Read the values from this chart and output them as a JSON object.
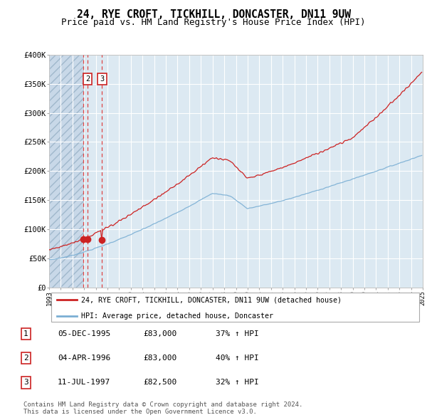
{
  "title": "24, RYE CROFT, TICKHILL, DONCASTER, DN11 9UW",
  "subtitle": "Price paid vs. HM Land Registry's House Price Index (HPI)",
  "ylim": [
    0,
    400000
  ],
  "yticks": [
    0,
    50000,
    100000,
    150000,
    200000,
    250000,
    300000,
    350000,
    400000
  ],
  "ytick_labels": [
    "£0",
    "£50K",
    "£100K",
    "£150K",
    "£200K",
    "£250K",
    "£300K",
    "£350K",
    "£400K"
  ],
  "start_year": 1993,
  "end_year": 2025,
  "hpi_color": "#7bafd4",
  "price_color": "#cc2222",
  "dashed_line_color": "#dd4444",
  "background_color": "#dce9f2",
  "grid_color": "#ffffff",
  "sale_dates": [
    1995.92,
    1996.29,
    1997.54
  ],
  "sale_prices": [
    83000,
    83000,
    82500
  ],
  "legend_line1": "24, RYE CROFT, TICKHILL, DONCASTER, DN11 9UW (detached house)",
  "legend_line2": "HPI: Average price, detached house, Doncaster",
  "table_entries": [
    {
      "num": "1",
      "date": "05-DEC-1995",
      "price": "£83,000",
      "change": "37% ↑ HPI"
    },
    {
      "num": "2",
      "date": "04-APR-1996",
      "price": "£83,000",
      "change": "40% ↑ HPI"
    },
    {
      "num": "3",
      "date": "11-JUL-1997",
      "price": "£82,500",
      "change": "32% ↑ HPI"
    }
  ],
  "footer": "Contains HM Land Registry data © Crown copyright and database right 2024.\nThis data is licensed under the Open Government Licence v3.0."
}
